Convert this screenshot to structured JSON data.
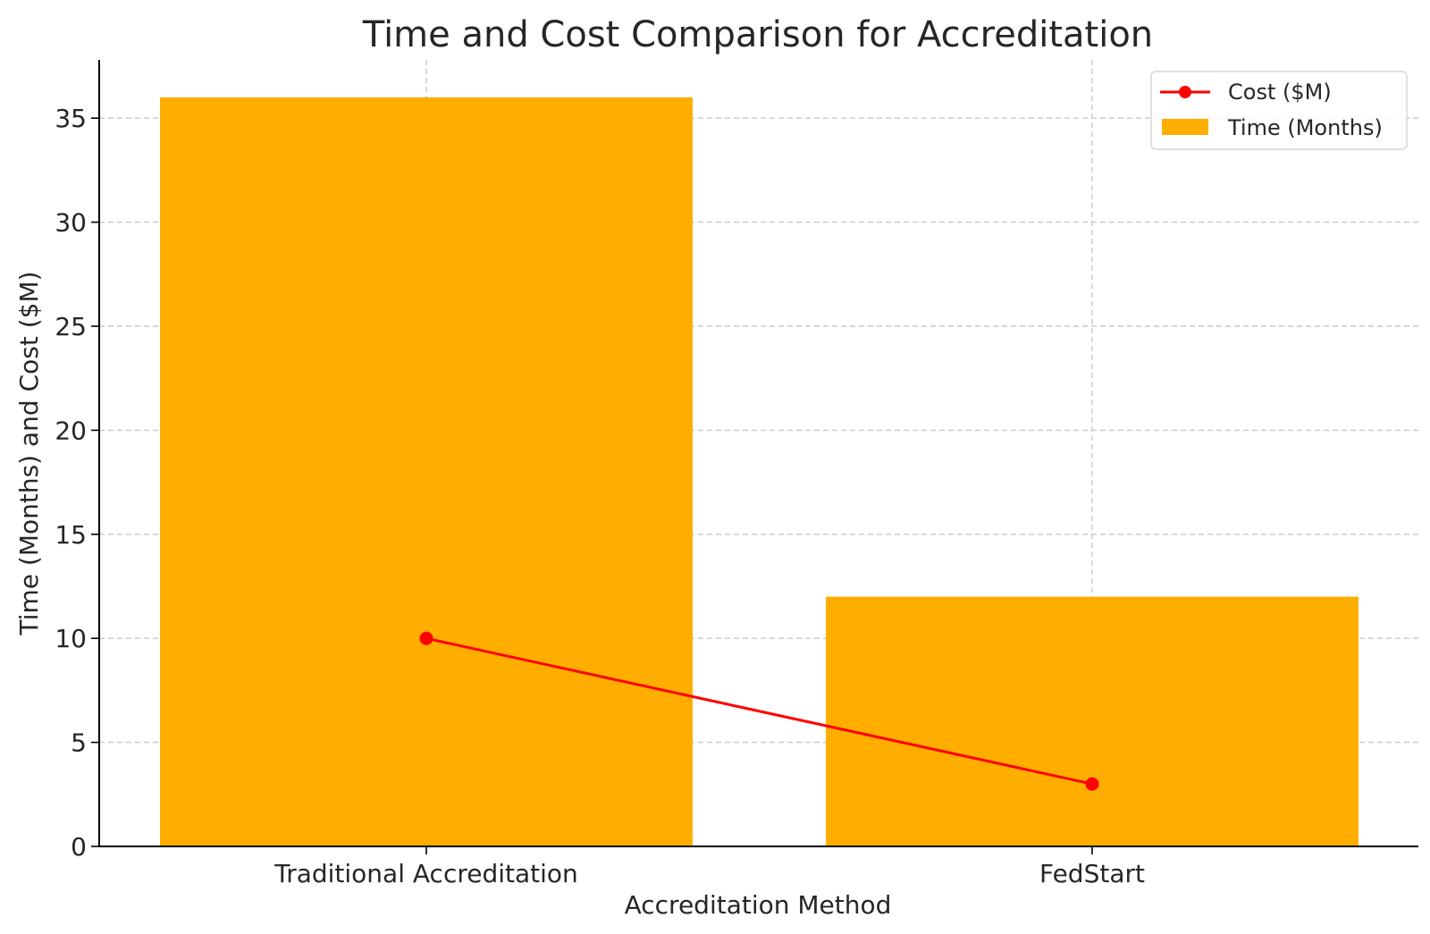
{
  "chart_data": {
    "type": "bar",
    "title": "Time and Cost Comparison for Accreditation",
    "xlabel": "Accreditation Method",
    "ylabel": "Time (Months) and Cost ($M)",
    "categories": [
      "Traditional Accreditation",
      "FedStart"
    ],
    "ylim": [
      0,
      37.8
    ],
    "yticks": [
      0,
      5,
      10,
      15,
      20,
      25,
      30,
      35
    ],
    "grid": true,
    "legend_position": "top-right",
    "series": [
      {
        "name": "Time (Months)",
        "type": "bar",
        "values": [
          36,
          12
        ],
        "color": "#FFAE00"
      },
      {
        "name": "Cost ($M)",
        "type": "line",
        "values": [
          10,
          3
        ],
        "color": "#FF0000",
        "marker": "circle"
      }
    ],
    "legend": [
      "Cost ($M)",
      "Time (Months)"
    ]
  }
}
